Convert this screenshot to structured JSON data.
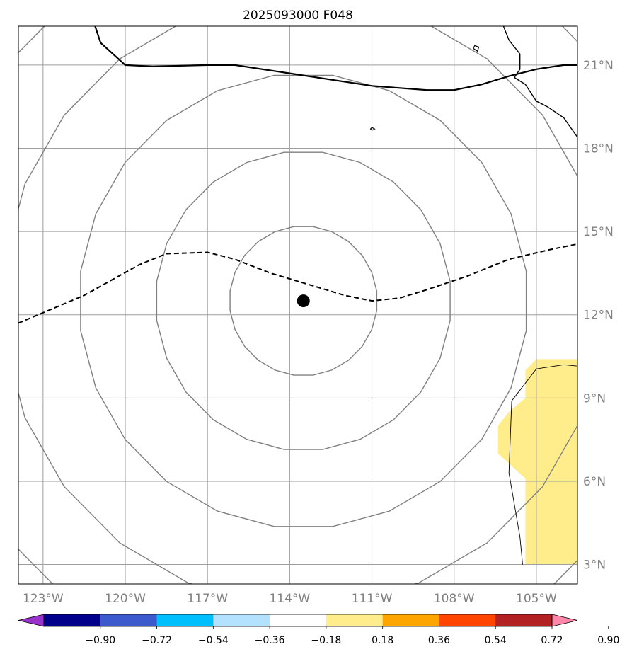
{
  "title": "2025093000 F048",
  "map": {
    "lon_range": [
      -123.9,
      -103.5
    ],
    "lat_range": [
      2.3,
      22.4
    ],
    "projection": "lat-lon (plate carree)",
    "gridlines": true,
    "lon_ticks": [
      {
        "value": -123,
        "label": "123°W"
      },
      {
        "value": -120,
        "label": "120°W"
      },
      {
        "value": -117,
        "label": "117°W"
      },
      {
        "value": -114,
        "label": "114°W"
      },
      {
        "value": -111,
        "label": "111°W"
      },
      {
        "value": -108,
        "label": "108°W"
      },
      {
        "value": -105,
        "label": "105°W"
      }
    ],
    "lat_ticks": [
      {
        "value": 3,
        "label": "3°N"
      },
      {
        "value": 6,
        "label": "6°N"
      },
      {
        "value": 9,
        "label": "9°N"
      },
      {
        "value": 12,
        "label": "12°N"
      },
      {
        "value": 15,
        "label": "15°N"
      },
      {
        "value": 18,
        "label": "18°N"
      },
      {
        "value": 21,
        "label": "21°N"
      }
    ],
    "center_marker": {
      "lon": -113.5,
      "lat": 12.5,
      "color": "#000000"
    },
    "range_rings": [
      {
        "radius_deg": 2.7
      },
      {
        "radius_deg": 5.4
      },
      {
        "radius_deg": 8.2
      },
      {
        "radius_deg": 11.0
      },
      {
        "radius_deg": 13.8
      }
    ],
    "ring_color": "#808080",
    "dashed_track": [
      [
        -123.9,
        11.7
      ],
      [
        -121.5,
        12.7
      ],
      [
        -119.5,
        13.8
      ],
      [
        -118.5,
        14.2
      ],
      [
        -117.0,
        14.25
      ],
      [
        -116.0,
        14.0
      ],
      [
        -114.7,
        13.5
      ],
      [
        -113.0,
        13.0
      ],
      [
        -112.0,
        12.7
      ],
      [
        -111.0,
        12.5
      ],
      [
        -110.0,
        12.6
      ],
      [
        -109.0,
        12.9
      ],
      [
        -107.5,
        13.4
      ],
      [
        -106.0,
        14.0
      ],
      [
        -104.5,
        14.35
      ],
      [
        -103.5,
        14.55
      ]
    ],
    "shaded_region": {
      "color": "#ffed8c",
      "polygon": [
        [
          -103.5,
          10.4
        ],
        [
          -105.0,
          10.4
        ],
        [
          -105.4,
          10.0
        ],
        [
          -105.4,
          9.0
        ],
        [
          -106.0,
          8.5
        ],
        [
          -106.4,
          8.0
        ],
        [
          -106.4,
          7.0
        ],
        [
          -105.4,
          6.1
        ],
        [
          -105.4,
          3.0
        ],
        [
          -103.5,
          3.0
        ]
      ]
    },
    "coastlines": {
      "mexico_border": [
        [
          -121.1,
          22.4
        ],
        [
          -120.9,
          21.8
        ],
        [
          -120.0,
          21.0
        ],
        [
          -119.0,
          20.95
        ],
        [
          -117.0,
          21.0
        ],
        [
          -116.0,
          21.0
        ],
        [
          -114.0,
          20.7
        ],
        [
          -112.0,
          20.4
        ],
        [
          -111.0,
          20.25
        ],
        [
          -109.0,
          20.1
        ],
        [
          -108.0,
          20.1
        ],
        [
          -107.0,
          20.3
        ],
        [
          -106.0,
          20.6
        ],
        [
          -105.0,
          20.85
        ],
        [
          -104.0,
          21.0
        ],
        [
          -103.5,
          21.0
        ]
      ],
      "mexico_coast": [
        [
          -106.2,
          22.4
        ],
        [
          -106.0,
          21.9
        ],
        [
          -105.6,
          21.4
        ],
        [
          -105.6,
          20.85
        ],
        [
          -105.8,
          20.55
        ],
        [
          -105.4,
          20.3
        ],
        [
          -105.0,
          19.7
        ],
        [
          -104.6,
          19.5
        ],
        [
          -104.0,
          19.1
        ],
        [
          -103.5,
          18.4
        ]
      ],
      "island_a": [
        [
          -107.25,
          21.7
        ],
        [
          -107.1,
          21.65
        ],
        [
          -107.15,
          21.5
        ],
        [
          -107.3,
          21.6
        ],
        [
          -107.25,
          21.7
        ]
      ],
      "island_b": [
        [
          -111.0,
          18.75
        ],
        [
          -110.9,
          18.7
        ],
        [
          -111.0,
          18.65
        ],
        [
          -111.05,
          18.7
        ],
        [
          -111.0,
          18.75
        ]
      ],
      "south_coast": [
        [
          -103.5,
          10.15
        ],
        [
          -104.0,
          10.2
        ],
        [
          -105.0,
          10.05
        ],
        [
          -105.9,
          8.9
        ],
        [
          -106.0,
          6.3
        ],
        [
          -105.6,
          4.0
        ],
        [
          -105.5,
          3.0
        ]
      ]
    }
  },
  "colorbar": {
    "colors": [
      "#9932cc",
      "#00008b",
      "#3c5acd",
      "#00bfff",
      "#b2e2ff",
      "#ffffff",
      "#ffed8c",
      "#ffa500",
      "#ff4500",
      "#b22222",
      "#ff88aa"
    ],
    "ticks": [
      "−0.90",
      "−0.72",
      "−0.54",
      "−0.36",
      "−0.18",
      "0.18",
      "0.36",
      "0.54",
      "0.72",
      "0.90"
    ]
  }
}
